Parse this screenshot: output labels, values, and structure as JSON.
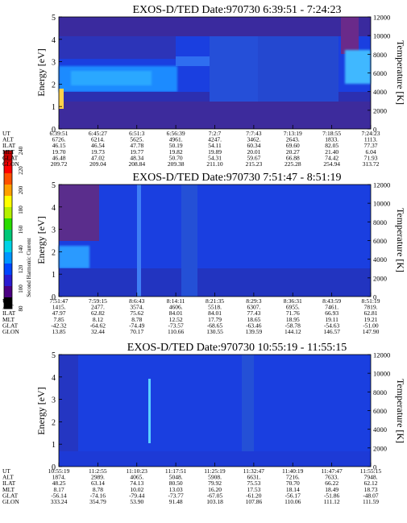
{
  "colorbar": {
    "label": "Second Harmonic Current",
    "ticks": [
      "240",
      "220",
      "200",
      "180",
      "160",
      "140",
      "120",
      "100",
      "80"
    ],
    "colors": [
      "#000000",
      "#4b0082",
      "#2a1bd1",
      "#0046ff",
      "#0096ff",
      "#00d2e6",
      "#00c878",
      "#28dc00",
      "#b4f000",
      "#ffff00",
      "#ffa000",
      "#ff5000",
      "#ff0000",
      "#c80000"
    ]
  },
  "chart_data": [
    {
      "type": "heatmap",
      "title": "EXOS-D/TED   Date:970730  6:39:51 - 7:24:23",
      "ylabel": "Energy [eV]",
      "y2label": "Temperature [K]",
      "ylim": [
        0,
        5
      ],
      "y2lim": [
        0,
        12000
      ],
      "yticks": [
        "0",
        "1",
        "2",
        "3",
        "4",
        "5"
      ],
      "y2ticks": [
        "0",
        "2000",
        "4000",
        "6000",
        "8000",
        "10000",
        "12000"
      ],
      "ephemeris": [
        {
          "name": "UT",
          "values": [
            "6:39:51",
            "6:45:27",
            "6:51:3",
            "6:56:39",
            "7:2:7",
            "7:7:43",
            "7:13:19",
            "7:18:55",
            "7:24:23"
          ]
        },
        {
          "name": "ALT",
          "values": [
            "6726.",
            "6214.",
            "5625.",
            "4961.",
            "4247.",
            "3462.",
            "2643.",
            "1833.",
            "1113."
          ]
        },
        {
          "name": "ILAT",
          "values": [
            "46.15",
            "46.54",
            "47.78",
            "50.19",
            "54.11",
            "60.34",
            "69.60",
            "82.05",
            "77.37"
          ]
        },
        {
          "name": "MLT",
          "values": [
            "19.70",
            "19.73",
            "19.77",
            "19.82",
            "19.89",
            "20.01",
            "20.27",
            "21.40",
            "6.04"
          ]
        },
        {
          "name": "GLAT",
          "values": [
            "46.48",
            "47.02",
            "48.34",
            "50.70",
            "54.31",
            "59.67",
            "66.88",
            "74.42",
            "71.93"
          ]
        },
        {
          "name": "GLON",
          "values": [
            "209.72",
            "209.04",
            "208.84",
            "209.38",
            "211.10",
            "215.23",
            "225.28",
            "254.94",
            "313.72"
          ]
        }
      ]
    },
    {
      "type": "heatmap",
      "title": "EXOS-D/TED   Date:970730  7:51:47 - 8:51:19",
      "ylabel": "Energy [eV]",
      "y2label": "Temperature [K]",
      "ylim": [
        0,
        5
      ],
      "y2lim": [
        0,
        12000
      ],
      "yticks": [
        "0",
        "1",
        "2",
        "3",
        "4",
        "5"
      ],
      "y2ticks": [
        "0",
        "2000",
        "4000",
        "6000",
        "8000",
        "10000",
        "12000"
      ],
      "ephemeris": [
        {
          "name": "UT",
          "values": [
            "7:51:47",
            "7:59:15",
            "8:6:43",
            "8:14:11",
            "8:21:35",
            "8:29:3",
            "8:36:31",
            "8:43:59",
            "8:51:19"
          ]
        },
        {
          "name": "ALT",
          "values": [
            "1415.",
            "2477.",
            "3574.",
            "4606.",
            "5518.",
            "6307.",
            "6955.",
            "7461.",
            "7819."
          ]
        },
        {
          "name": "ILAT",
          "values": [
            "47.97",
            "62.82",
            "75.62",
            "84.01",
            "84.01",
            "77.43",
            "71.76",
            "66.93",
            "62.81"
          ]
        },
        {
          "name": "MLT",
          "values": [
            "7.85",
            "8.12",
            "8.78",
            "12.52",
            "17.79",
            "18.65",
            "18.95",
            "19.11",
            "19.21"
          ]
        },
        {
          "name": "GLAT",
          "values": [
            "-42.32",
            "-64.62",
            "-74.49",
            "-73.57",
            "-68.65",
            "-63.46",
            "-58.78",
            "-54.63",
            "-51.00"
          ]
        },
        {
          "name": "GLON",
          "values": [
            "13.85",
            "32.44",
            "70.17",
            "110.66",
            "130.55",
            "139.59",
            "144.12",
            "146.57",
            "147.90"
          ]
        }
      ]
    },
    {
      "type": "heatmap",
      "title": "EXOS-D/TED   Date:970730  10:55:19 - 11:55:15",
      "ylabel": "Energy [eV]",
      "y2label": "Temperature [K]",
      "ylim": [
        0,
        5
      ],
      "y2lim": [
        0,
        12000
      ],
      "yticks": [
        "0",
        "1",
        "2",
        "3",
        "4",
        "5"
      ],
      "y2ticks": [
        "0",
        "2000",
        "4000",
        "6000",
        "8000",
        "10000",
        "12000"
      ],
      "ephemeris": [
        {
          "name": "UT",
          "values": [
            "10:55:19",
            "11:2:55",
            "11:10:23",
            "11:17:51",
            "11:25:19",
            "11:32:47",
            "11:40:19",
            "11:47:47",
            "11:55:15"
          ]
        },
        {
          "name": "ALT",
          "values": [
            "1874.",
            "2989.",
            "4065.",
            "5048.",
            "5908.",
            "6631.",
            "7216.",
            "7633.",
            "7948."
          ]
        },
        {
          "name": "ILAT",
          "values": [
            "48.25",
            "63.14",
            "74.13",
            "80.50",
            "79.92",
            "75.53",
            "70.70",
            "66.22",
            "62.12"
          ]
        },
        {
          "name": "MLT",
          "values": [
            "8.17",
            "8.78",
            "10.02",
            "13.03",
            "16.20",
            "17.53",
            "18.14",
            "18.49",
            "18.73"
          ]
        },
        {
          "name": "GLAT",
          "values": [
            "-56.14",
            "-74.16",
            "-79.44",
            "-73.77",
            "-67.05",
            "-61.20",
            "-56.17",
            "-51.86",
            "-48.07"
          ]
        },
        {
          "name": "GLON",
          "values": [
            "333.24",
            "354.79",
            "53.90",
            "91.48",
            "103.18",
            "107.86",
            "110.06",
            "111.12",
            "111.59"
          ]
        }
      ]
    }
  ]
}
